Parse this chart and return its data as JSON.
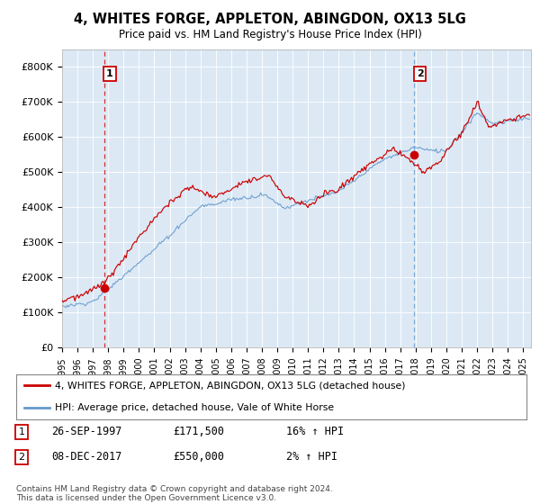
{
  "title": "4, WHITES FORGE, APPLETON, ABINGDON, OX13 5LG",
  "subtitle": "Price paid vs. HM Land Registry's House Price Index (HPI)",
  "legend_line1": "4, WHITES FORGE, APPLETON, ABINGDON, OX13 5LG (detached house)",
  "legend_line2": "HPI: Average price, detached house, Vale of White Horse",
  "footnote": "Contains HM Land Registry data © Crown copyright and database right 2024.\nThis data is licensed under the Open Government Licence v3.0.",
  "table_rows": [
    {
      "num": "1",
      "date": "26-SEP-1997",
      "price": "£171,500",
      "hpi": "16% ↑ HPI"
    },
    {
      "num": "2",
      "date": "08-DEC-2017",
      "price": "£550,000",
      "hpi": "2% ↑ HPI"
    }
  ],
  "sale1_year": 1997.73,
  "sale1_price": 171500,
  "sale2_year": 2017.92,
  "sale2_price": 550000,
  "ylabel_ticks": [
    0,
    100000,
    200000,
    300000,
    400000,
    500000,
    600000,
    700000,
    800000
  ],
  "ylabel_labels": [
    "£0",
    "£100K",
    "£200K",
    "£300K",
    "£400K",
    "£500K",
    "£600K",
    "£700K",
    "£800K"
  ],
  "xlim_start": 1995.0,
  "xlim_end": 2025.5,
  "ylim_min": 0,
  "ylim_max": 850000,
  "red_color": "#cc0000",
  "blue_color": "#6699cc",
  "chart_bg": "#dce9f5",
  "background_color": "#ffffff",
  "grid_color": "#ffffff"
}
